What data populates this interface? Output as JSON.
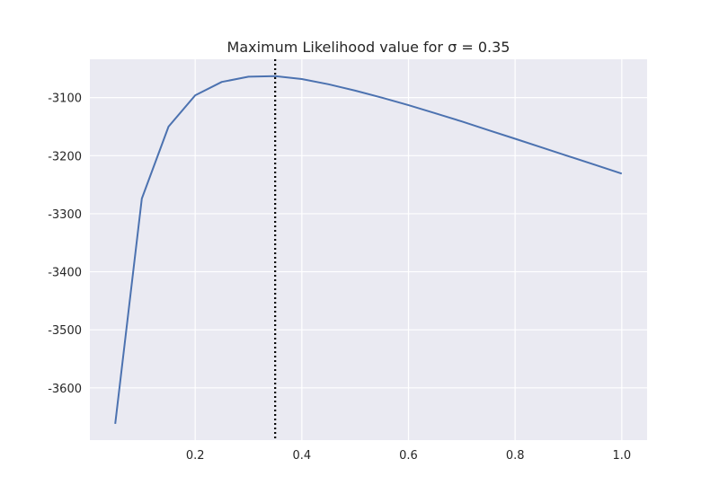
{
  "chart_data": {
    "type": "line",
    "title": "Maximum Likelihood value for σ = 0.35",
    "xlabel": "",
    "ylabel": "",
    "xlim": [
      0.0025,
      1.0475
    ],
    "ylim": [
      -3690,
      -3034
    ],
    "x_ticks": [
      0.2,
      0.4,
      0.6,
      0.8,
      1.0
    ],
    "x_tick_labels": [
      "0.2",
      "0.4",
      "0.6",
      "0.8",
      "1.0"
    ],
    "y_ticks": [
      -3600,
      -3500,
      -3400,
      -3300,
      -3200,
      -3100
    ],
    "y_tick_labels": [
      "-3600",
      "-3500",
      "-3400",
      "-3300",
      "-3200",
      "-3100"
    ],
    "grid": true,
    "series": [
      {
        "color": "#4c72b0",
        "x": [
          0.05,
          0.1,
          0.15,
          0.2,
          0.25,
          0.3,
          0.35,
          0.4,
          0.45,
          0.5,
          0.55,
          0.6,
          0.65,
          0.7,
          0.75,
          0.8,
          0.85,
          0.9,
          0.95,
          1.0
        ],
        "y": [
          -3662,
          -3274,
          -3150,
          -3096,
          -3073,
          -3064,
          -3063,
          -3068,
          -3077,
          -3088,
          -3100,
          -3113,
          -3127,
          -3141,
          -3156,
          -3171,
          -3186,
          -3201,
          -3216,
          -3231
        ]
      }
    ],
    "vline": {
      "x": 0.35,
      "style": "dotted",
      "color": "#000000"
    }
  }
}
